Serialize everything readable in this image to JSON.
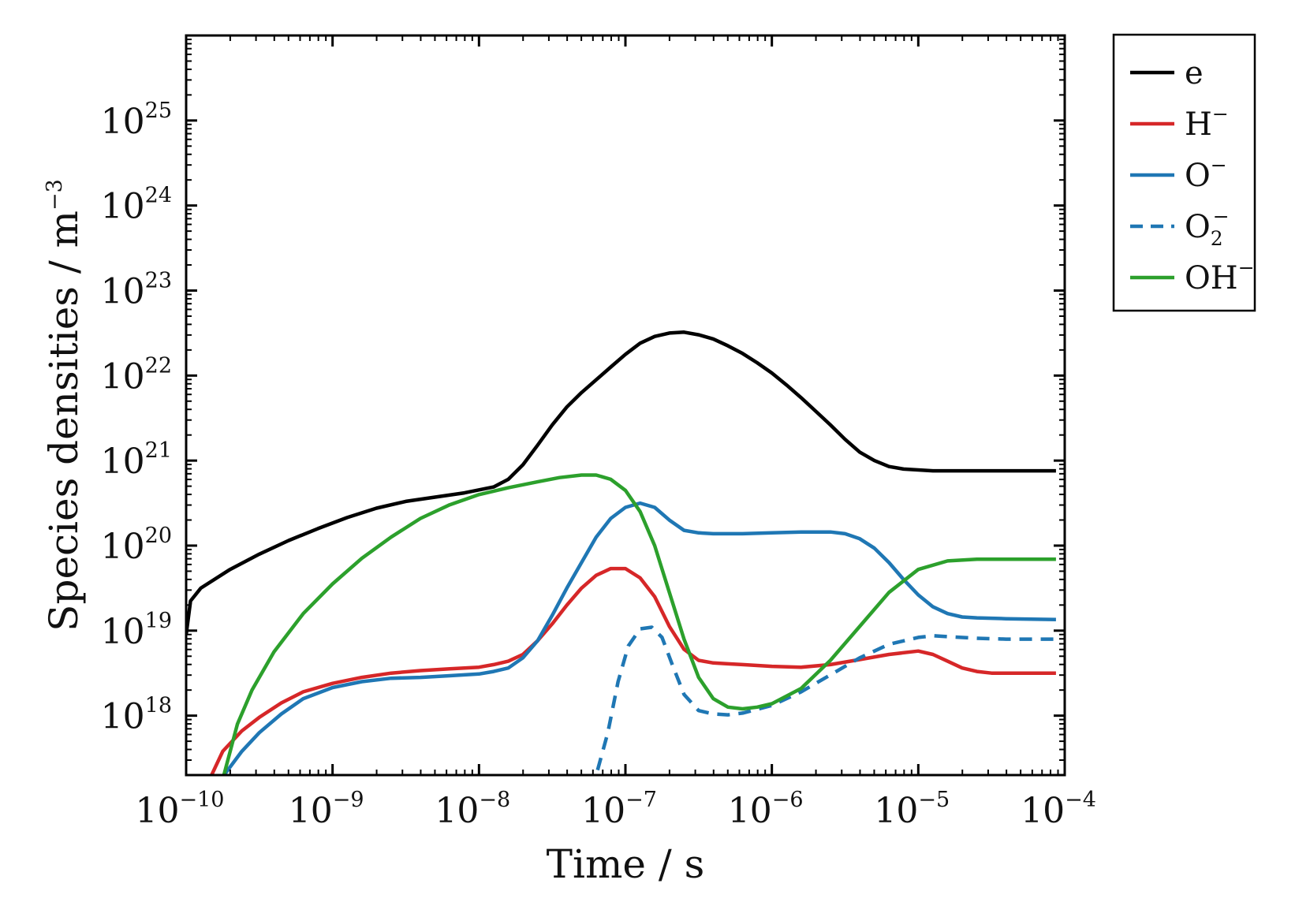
{
  "chart_data": {
    "type": "line",
    "xlabel": "Time / s",
    "ylabel": "Species densities / m",
    "ylabel_exponent": "−3",
    "x_scale": "log",
    "y_scale": "log",
    "xlim": [
      1e-10,
      0.0001
    ],
    "ylim": [
      2e+17,
      1e+26
    ],
    "x_ticks": [
      {
        "value": 1e-10,
        "base": "10",
        "exp": "−10"
      },
      {
        "value": 1e-09,
        "base": "10",
        "exp": "−9"
      },
      {
        "value": 1e-08,
        "base": "10",
        "exp": "−8"
      },
      {
        "value": 1e-07,
        "base": "10",
        "exp": "−7"
      },
      {
        "value": 1e-06,
        "base": "10",
        "exp": "−6"
      },
      {
        "value": 1e-05,
        "base": "10",
        "exp": "−5"
      },
      {
        "value": 0.0001,
        "base": "10",
        "exp": "−4"
      }
    ],
    "y_ticks": [
      {
        "value": 1e+18,
        "base": "10",
        "exp": "18"
      },
      {
        "value": 1e+19,
        "base": "10",
        "exp": "19"
      },
      {
        "value": 1e+20,
        "base": "10",
        "exp": "20"
      },
      {
        "value": 1e+21,
        "base": "10",
        "exp": "21"
      },
      {
        "value": 1e+22,
        "base": "10",
        "exp": "22"
      },
      {
        "value": 1e+23,
        "base": "10",
        "exp": "23"
      },
      {
        "value": 1e+24,
        "base": "10",
        "exp": "24"
      },
      {
        "value": 1e+25,
        "base": "10",
        "exp": "25"
      }
    ],
    "legend_position": "outside-top-right",
    "series": [
      {
        "name": "e",
        "label_main": "e",
        "label_sup": "",
        "label_sub": "",
        "color": "#000000",
        "dash": false,
        "points": [
          [
            -10,
            18.95
          ],
          [
            -9.97,
            19.35
          ],
          [
            -9.9,
            19.5
          ],
          [
            -9.7,
            19.72
          ],
          [
            -9.5,
            19.9
          ],
          [
            -9.3,
            20.06
          ],
          [
            -9.1,
            20.2
          ],
          [
            -8.9,
            20.33
          ],
          [
            -8.7,
            20.44
          ],
          [
            -8.5,
            20.52
          ],
          [
            -8.3,
            20.57
          ],
          [
            -8.1,
            20.62
          ],
          [
            -7.9,
            20.69
          ],
          [
            -7.8,
            20.78
          ],
          [
            -7.7,
            20.95
          ],
          [
            -7.6,
            21.18
          ],
          [
            -7.5,
            21.42
          ],
          [
            -7.4,
            21.63
          ],
          [
            -7.3,
            21.8
          ],
          [
            -7.2,
            21.95
          ],
          [
            -7.1,
            22.1
          ],
          [
            -7.0,
            22.25
          ],
          [
            -6.9,
            22.38
          ],
          [
            -6.8,
            22.46
          ],
          [
            -6.7,
            22.5
          ],
          [
            -6.6,
            22.51
          ],
          [
            -6.5,
            22.48
          ],
          [
            -6.4,
            22.43
          ],
          [
            -6.3,
            22.35
          ],
          [
            -6.2,
            22.26
          ],
          [
            -6.1,
            22.15
          ],
          [
            -6.0,
            22.03
          ],
          [
            -5.9,
            21.89
          ],
          [
            -5.8,
            21.74
          ],
          [
            -5.7,
            21.58
          ],
          [
            -5.6,
            21.42
          ],
          [
            -5.5,
            21.25
          ],
          [
            -5.4,
            21.1
          ],
          [
            -5.3,
            21.0
          ],
          [
            -5.2,
            20.93
          ],
          [
            -5.1,
            20.9
          ],
          [
            -5.0,
            20.89
          ],
          [
            -4.9,
            20.88
          ],
          [
            -4.8,
            20.88
          ],
          [
            -4.7,
            20.88
          ],
          [
            -4.6,
            20.88
          ],
          [
            -4.5,
            20.88
          ],
          [
            -4.4,
            20.88
          ],
          [
            -4.3,
            20.88
          ],
          [
            -4.2,
            20.88
          ],
          [
            -4.1,
            20.88
          ],
          [
            -4.06,
            20.88
          ]
        ]
      },
      {
        "name": "H-",
        "label_main": "H",
        "label_sup": "−",
        "label_sub": "",
        "color": "#d62728",
        "dash": false,
        "points": [
          [
            -9.84,
            17.25
          ],
          [
            -9.75,
            17.58
          ],
          [
            -9.62,
            17.82
          ],
          [
            -9.5,
            17.98
          ],
          [
            -9.35,
            18.15
          ],
          [
            -9.2,
            18.28
          ],
          [
            -9.0,
            18.38
          ],
          [
            -8.8,
            18.45
          ],
          [
            -8.6,
            18.5
          ],
          [
            -8.4,
            18.53
          ],
          [
            -8.2,
            18.55
          ],
          [
            -8.1,
            18.56
          ],
          [
            -8.0,
            18.57
          ],
          [
            -7.9,
            18.6
          ],
          [
            -7.8,
            18.64
          ],
          [
            -7.7,
            18.72
          ],
          [
            -7.6,
            18.88
          ],
          [
            -7.5,
            19.08
          ],
          [
            -7.4,
            19.3
          ],
          [
            -7.3,
            19.5
          ],
          [
            -7.2,
            19.65
          ],
          [
            -7.1,
            19.73
          ],
          [
            -7.0,
            19.73
          ],
          [
            -6.9,
            19.62
          ],
          [
            -6.8,
            19.4
          ],
          [
            -6.7,
            19.05
          ],
          [
            -6.6,
            18.78
          ],
          [
            -6.5,
            18.65
          ],
          [
            -6.4,
            18.62
          ],
          [
            -6.3,
            18.61
          ],
          [
            -6.2,
            18.6
          ],
          [
            -6.0,
            18.58
          ],
          [
            -5.8,
            18.57
          ],
          [
            -5.6,
            18.6
          ],
          [
            -5.4,
            18.66
          ],
          [
            -5.2,
            18.72
          ],
          [
            -5.0,
            18.76
          ],
          [
            -4.9,
            18.72
          ],
          [
            -4.8,
            18.64
          ],
          [
            -4.7,
            18.56
          ],
          [
            -4.6,
            18.52
          ],
          [
            -4.5,
            18.5
          ],
          [
            -4.3,
            18.5
          ],
          [
            -4.06,
            18.5
          ]
        ]
      },
      {
        "name": "O-",
        "label_main": "O",
        "label_sup": "−",
        "label_sub": "",
        "color": "#1f77b4",
        "dash": false,
        "points": [
          [
            -9.75,
            17.28
          ],
          [
            -9.62,
            17.58
          ],
          [
            -9.5,
            17.8
          ],
          [
            -9.35,
            18.02
          ],
          [
            -9.2,
            18.2
          ],
          [
            -9.0,
            18.33
          ],
          [
            -8.8,
            18.4
          ],
          [
            -8.6,
            18.44
          ],
          [
            -8.4,
            18.45
          ],
          [
            -8.2,
            18.47
          ],
          [
            -8.0,
            18.49
          ],
          [
            -7.9,
            18.52
          ],
          [
            -7.8,
            18.56
          ],
          [
            -7.7,
            18.68
          ],
          [
            -7.6,
            18.88
          ],
          [
            -7.5,
            19.18
          ],
          [
            -7.4,
            19.5
          ],
          [
            -7.3,
            19.8
          ],
          [
            -7.2,
            20.1
          ],
          [
            -7.1,
            20.32
          ],
          [
            -7.0,
            20.45
          ],
          [
            -6.9,
            20.5
          ],
          [
            -6.8,
            20.45
          ],
          [
            -6.7,
            20.3
          ],
          [
            -6.6,
            20.18
          ],
          [
            -6.5,
            20.15
          ],
          [
            -6.4,
            20.14
          ],
          [
            -6.2,
            20.14
          ],
          [
            -6.0,
            20.15
          ],
          [
            -5.8,
            20.16
          ],
          [
            -5.6,
            20.16
          ],
          [
            -5.5,
            20.14
          ],
          [
            -5.4,
            20.08
          ],
          [
            -5.3,
            19.97
          ],
          [
            -5.2,
            19.8
          ],
          [
            -5.1,
            19.6
          ],
          [
            -5.0,
            19.42
          ],
          [
            -4.9,
            19.28
          ],
          [
            -4.8,
            19.2
          ],
          [
            -4.7,
            19.16
          ],
          [
            -4.6,
            19.15
          ],
          [
            -4.4,
            19.14
          ],
          [
            -4.06,
            19.13
          ]
        ]
      },
      {
        "name": "O2-",
        "label_main": "O",
        "label_sup": "−",
        "label_sub": "2",
        "color": "#1f77b4",
        "dash": true,
        "points": [
          [
            -7.19,
            17.36
          ],
          [
            -7.12,
            17.8
          ],
          [
            -7.05,
            18.4
          ],
          [
            -6.98,
            18.82
          ],
          [
            -6.9,
            19.02
          ],
          [
            -6.82,
            19.04
          ],
          [
            -6.75,
            18.92
          ],
          [
            -6.68,
            18.6
          ],
          [
            -6.6,
            18.25
          ],
          [
            -6.5,
            18.06
          ],
          [
            -6.4,
            18.02
          ],
          [
            -6.3,
            18.01
          ],
          [
            -6.2,
            18.03
          ],
          [
            -6.0,
            18.12
          ],
          [
            -5.8,
            18.28
          ],
          [
            -5.6,
            18.48
          ],
          [
            -5.4,
            18.68
          ],
          [
            -5.2,
            18.84
          ],
          [
            -5.0,
            18.92
          ],
          [
            -4.9,
            18.94
          ],
          [
            -4.8,
            18.93
          ],
          [
            -4.6,
            18.91
          ],
          [
            -4.4,
            18.9
          ],
          [
            -4.06,
            18.9
          ]
        ]
      },
      {
        "name": "OH-",
        "label_main": "OH",
        "label_sup": "−",
        "label_sub": "",
        "color": "#2ca02c",
        "dash": false,
        "points": [
          [
            -9.75,
            17.25
          ],
          [
            -9.65,
            17.9
          ],
          [
            -9.55,
            18.3
          ],
          [
            -9.4,
            18.75
          ],
          [
            -9.2,
            19.2
          ],
          [
            -9.0,
            19.55
          ],
          [
            -8.8,
            19.85
          ],
          [
            -8.6,
            20.1
          ],
          [
            -8.4,
            20.32
          ],
          [
            -8.2,
            20.48
          ],
          [
            -8.0,
            20.6
          ],
          [
            -7.8,
            20.68
          ],
          [
            -7.6,
            20.75
          ],
          [
            -7.45,
            20.8
          ],
          [
            -7.3,
            20.83
          ],
          [
            -7.2,
            20.83
          ],
          [
            -7.1,
            20.78
          ],
          [
            -7.0,
            20.65
          ],
          [
            -6.9,
            20.4
          ],
          [
            -6.8,
            20.0
          ],
          [
            -6.7,
            19.45
          ],
          [
            -6.6,
            18.9
          ],
          [
            -6.5,
            18.45
          ],
          [
            -6.4,
            18.2
          ],
          [
            -6.3,
            18.1
          ],
          [
            -6.2,
            18.08
          ],
          [
            -6.1,
            18.1
          ],
          [
            -6.0,
            18.14
          ],
          [
            -5.8,
            18.32
          ],
          [
            -5.6,
            18.65
          ],
          [
            -5.4,
            19.05
          ],
          [
            -5.2,
            19.45
          ],
          [
            -5.0,
            19.72
          ],
          [
            -4.8,
            19.82
          ],
          [
            -4.6,
            19.84
          ],
          [
            -4.4,
            19.84
          ],
          [
            -4.06,
            19.84
          ]
        ]
      }
    ]
  }
}
